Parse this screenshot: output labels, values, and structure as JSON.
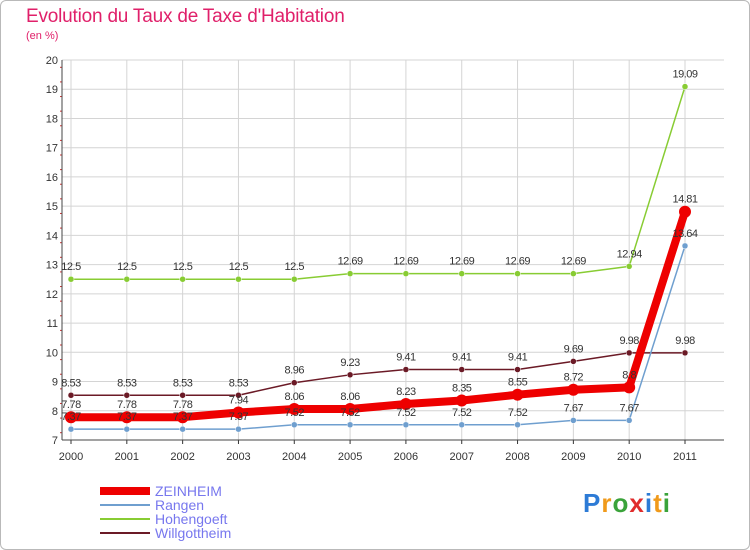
{
  "chart_data": {
    "type": "line",
    "title": "Evolution du Taux de Taxe d'Habitation",
    "subtitle": "(en %)",
    "x": [
      "2000",
      "2001",
      "2002",
      "2003",
      "2004",
      "2005",
      "2006",
      "2007",
      "2008",
      "2009",
      "2010",
      "2011"
    ],
    "y_ticks": [
      "7",
      "8",
      "9",
      "10",
      "11",
      "12",
      "13",
      "14",
      "15",
      "16",
      "17",
      "18",
      "19",
      "20"
    ],
    "ylim": [
      7,
      20
    ],
    "grid": true,
    "series": [
      {
        "name": "Willgottheim",
        "color": "#6b1a26",
        "values": [
          8.53,
          8.53,
          8.53,
          8.53,
          8.96,
          9.23,
          9.41,
          9.41,
          9.41,
          9.69,
          9.98,
          9.98
        ],
        "labels": [
          "8.53",
          "8.53",
          "8.53",
          "8.53",
          "8.96",
          "9.23",
          "9.41",
          "9.41",
          "9.41",
          "9.69",
          "9.98",
          "9.98"
        ]
      },
      {
        "name": "Hohengoeft",
        "color": "#88cc33",
        "values": [
          12.5,
          12.5,
          12.5,
          12.5,
          12.5,
          12.69,
          12.69,
          12.69,
          12.69,
          12.69,
          12.94,
          19.09
        ],
        "labels": [
          "12.5",
          "12.5",
          "12.5",
          "12.5",
          "12.5",
          "12.69",
          "12.69",
          "12.69",
          "12.69",
          "12.69",
          "12.94",
          "19.09"
        ]
      },
      {
        "name": "Rangen",
        "color": "#6f9fcf",
        "values": [
          7.37,
          7.37,
          7.37,
          7.37,
          7.52,
          7.52,
          7.52,
          7.52,
          7.52,
          7.67,
          7.67,
          13.64
        ],
        "labels": [
          "7.37",
          "7.37",
          "7.37",
          "7.37",
          "7.52",
          "7.52",
          "7.52",
          "7.52",
          "7.52",
          "7.67",
          "7.67",
          "13.64"
        ]
      },
      {
        "name": "ZEINHEIM",
        "color": "#ee0000",
        "values": [
          7.78,
          7.78,
          7.78,
          7.94,
          8.06,
          8.06,
          8.23,
          8.35,
          8.55,
          8.72,
          8.8,
          14.81
        ],
        "labels": [
          "7.78",
          "7.78",
          "7.78",
          "7.94",
          "8.06",
          "8.06",
          "8.23",
          "8.35",
          "8.55",
          "8.72",
          "8.8",
          "14.81"
        ]
      }
    ],
    "legend": {
      "placement": "bottom-left",
      "entries": [
        "ZEINHEIM",
        "Rangen",
        "Hohengoeft",
        "Willgottheim"
      ]
    }
  },
  "logo": {
    "letters": [
      "P",
      "r",
      "o",
      "x",
      "i",
      "t",
      "i"
    ],
    "colors": [
      "#2d7bd6",
      "#f09a1b",
      "#3aa33a",
      "#e02c2c",
      "#2d7bd6",
      "#f09a1b",
      "#3aa33a"
    ]
  }
}
